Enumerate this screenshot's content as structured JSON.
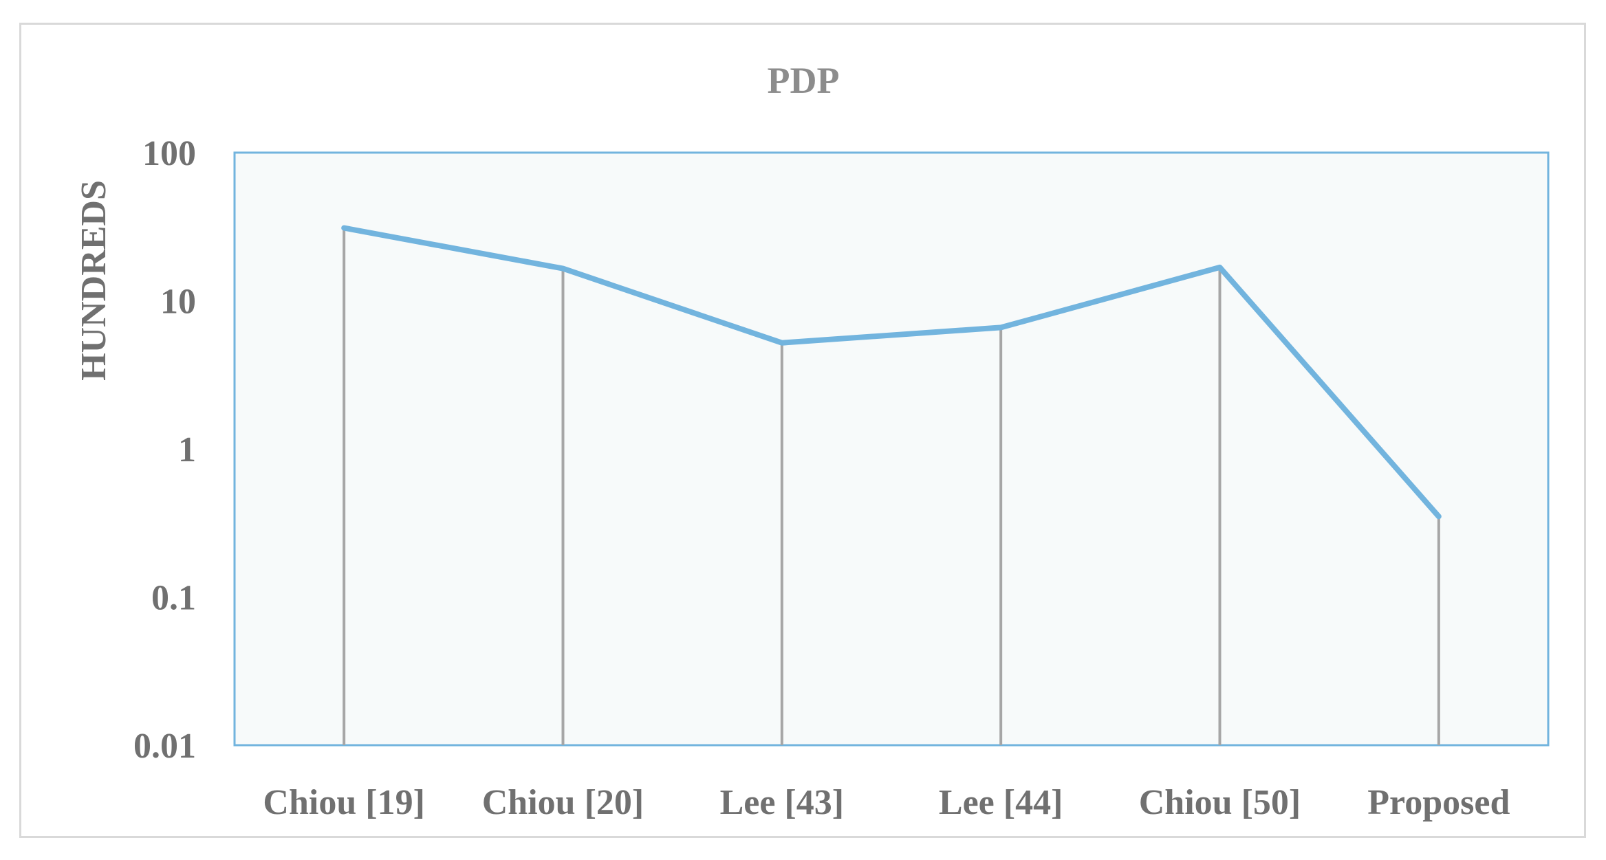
{
  "chart_data": {
    "type": "line",
    "title": "PDP",
    "ylabel": "HUNDREDS",
    "xlabel": "",
    "y_scale": "log",
    "ylim": [
      0.01,
      100
    ],
    "y_ticks": [
      "100",
      "10",
      "1",
      "0.1",
      "0.01"
    ],
    "categories": [
      "Chiou [19]",
      "Chiou [20]",
      "Lee [43]",
      "Lee [44]",
      "Chiou [50]",
      "Proposed"
    ],
    "series": [
      {
        "values": [
          31,
          16.5,
          5.2,
          6.6,
          16.8,
          0.35
        ],
        "color": "#72b4de"
      }
    ],
    "drop_lines": true,
    "drop_line_color": "#a6a6a6",
    "plot_background": "#f7fafa",
    "plot_border_color": "#72b4de",
    "grid": false,
    "legend": "none"
  }
}
